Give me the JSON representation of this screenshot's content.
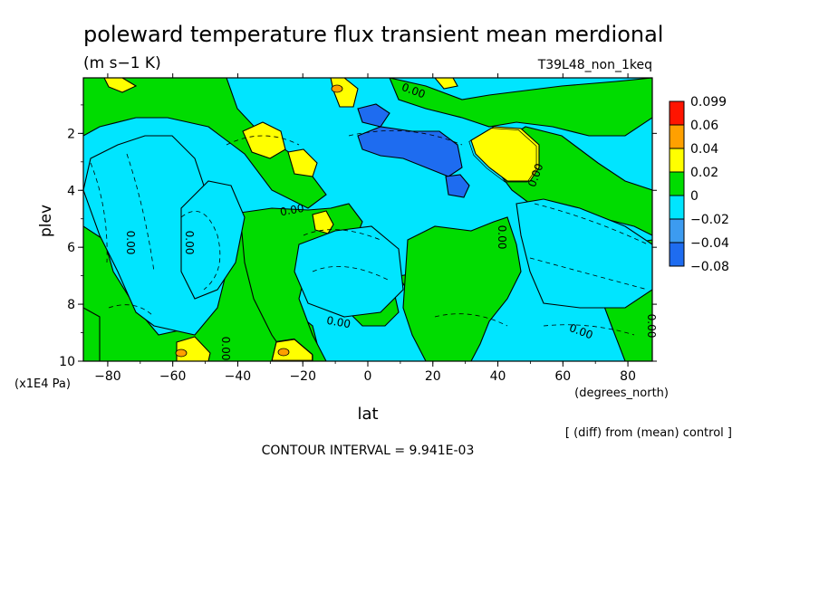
{
  "chart_data": {
    "type": "heatmap",
    "title": "poleward temperature flux transient mean merdional",
    "units": "(m s−1 K)",
    "run_label": "T39L48_non_1keq",
    "xlabel": "lat",
    "x_unit": "(degrees_north)",
    "ylabel": "plev",
    "y_unit": "(x1E4 Pa)",
    "x_ticks": [
      -80,
      -60,
      -40,
      -20,
      0,
      20,
      40,
      60,
      80
    ],
    "x_tick_labels": [
      "−80",
      "−60",
      "−40",
      "−20",
      "0",
      "20",
      "40",
      "60",
      "80"
    ],
    "y_ticks": [
      2,
      4,
      6,
      8,
      10
    ],
    "y_tick_labels": [
      "2",
      "4",
      "6",
      "8",
      "10"
    ],
    "xlim": [
      -87.5,
      87.5
    ],
    "ylim": [
      0.05,
      10
    ],
    "y_reversed": true,
    "comparison_note": "[ (diff) from (mean) control ]",
    "contour_interval_text": "CONTOUR INTERVAL = 9.941E-03",
    "contour_label_text": "0.00",
    "colorbar": {
      "levels": [
        -0.08,
        -0.04,
        -0.02,
        0,
        0.02,
        0.04,
        0.06,
        0.099
      ],
      "level_labels": [
        "−0.08",
        "−0.04",
        "−0.02",
        "0",
        "0.02",
        "0.04",
        "0.06",
        "0.099"
      ],
      "colors": [
        "#1e6cf0",
        "#3c9bf0",
        "#00e5ff",
        "#00dc00",
        "#ffff00",
        "#ffa000",
        "#ff1400"
      ]
    },
    "regions": [
      {
        "category": "negative",
        "value": -0.01,
        "lat": -80,
        "plev": 4.5
      },
      {
        "category": "negative",
        "value": -0.01,
        "lat": -42,
        "plev": 5
      },
      {
        "category": "negative",
        "value": -0.01,
        "lat": 5,
        "plev": 8
      },
      {
        "category": "negative",
        "value": -0.01,
        "lat": 58,
        "plev": 4.5
      },
      {
        "category": "positive",
        "value": 0.01,
        "lat": -75,
        "plev": 0.6
      },
      {
        "category": "positive",
        "value": 0.01,
        "lat": -20,
        "plev": 7
      },
      {
        "category": "positive",
        "value": 0.01,
        "lat": 40,
        "plev": 6
      },
      {
        "category": "positive",
        "value": 0.01,
        "lat": 83,
        "plev": 5
      },
      {
        "category": "strong_positive",
        "value": 0.03,
        "lat": 47,
        "plev": 2.7
      },
      {
        "category": "strong_positive",
        "value": 0.03,
        "lat": -30,
        "plev": 2.4
      },
      {
        "category": "strong_positive",
        "value": 0.03,
        "lat": -57,
        "plev": 9.8
      },
      {
        "category": "strong_positive",
        "value": 0.03,
        "lat": -25,
        "plev": 9.8
      },
      {
        "category": "strong_positive",
        "value": 0.03,
        "lat": -14,
        "plev": 5.1
      },
      {
        "category": "strong_positive",
        "value": 0.03,
        "lat": -70,
        "plev": 0.4
      },
      {
        "category": "strong_positive",
        "value": 0.03,
        "lat": -8,
        "plev": 0.5
      },
      {
        "category": "strong_negative",
        "value": -0.05,
        "lat": 13,
        "plev": 2.5
      },
      {
        "category": "strong_negative",
        "value": -0.05,
        "lat": 27,
        "plev": 4
      },
      {
        "category": "strong_negative",
        "value": -0.05,
        "lat": 2,
        "plev": 1.6
      }
    ],
    "legend_placement": "right",
    "grid": false
  }
}
